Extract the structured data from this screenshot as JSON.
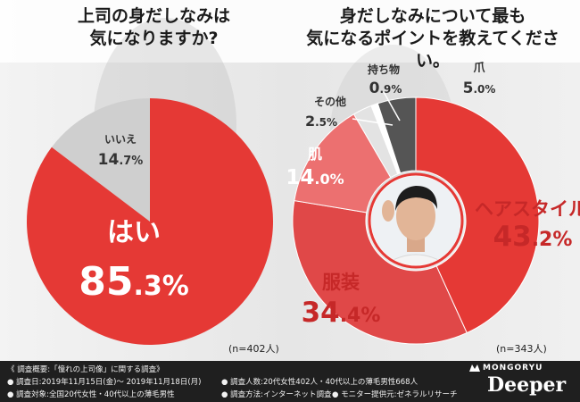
{
  "titles": {
    "left_line1": "上司の身だしなみは",
    "left_line2": "気になりますか?",
    "right_line1": "身だしなみについて最も",
    "right_line2": "気になるポイントを教えてください。"
  },
  "colors": {
    "red": "#e53935",
    "dark_red": "#c62828",
    "mid_red": "#e04848",
    "light_red": "#ec7070",
    "gray": "#cfcfcf",
    "light_gray": "#e3e3e3",
    "dark_gray": "#555555",
    "white": "#ffffff",
    "dark_text": "#333333"
  },
  "chart_data": [
    {
      "type": "pie",
      "title": "上司の身だしなみは気になりますか?",
      "slices": [
        {
          "label": "はい",
          "value": 85.3,
          "value_int": "85",
          "value_dec": ".3%"
        },
        {
          "label": "いいえ",
          "value": 14.7,
          "value_int": "14",
          "value_dec": ".7%"
        }
      ],
      "sample_size": "(n=402人)"
    },
    {
      "type": "pie",
      "title": "身だしなみについて最も気になるポイントを教えてください。",
      "slices": [
        {
          "label": "ヘアスタイル",
          "value": 43.2,
          "value_int": "43",
          "value_dec": ".2%"
        },
        {
          "label": "服装",
          "value": 34.4,
          "value_int": "34",
          "value_dec": ".4%"
        },
        {
          "label": "肌",
          "value": 14.0,
          "value_int": "14",
          "value_dec": ".0%"
        },
        {
          "label": "その他",
          "value": 2.5,
          "value_int": "2",
          "value_dec": ".5%"
        },
        {
          "label": "持ち物",
          "value": 0.9,
          "value_int": "0",
          "value_dec": ".9%"
        },
        {
          "label": "爪",
          "value": 5.0,
          "value_int": "5",
          "value_dec": ".0%"
        }
      ],
      "sample_size": "(n=343人)"
    }
  ],
  "footer": {
    "line1": "《 調査概要:「憧れの上司像」に関する調査》",
    "line2a": "● 調査日:2019年11月15日(金)〜 2019年11月18日(月)",
    "line2b": "● 調査人数:20代女性402人・40代以上の薄毛男性668人",
    "line3a": "● 調査対象:全国20代女性・40代以上の薄毛男性",
    "line3b": "● 調査方法:インターネット調査",
    "line3c": "● モニター提供元:ゼネラルリサーチ"
  },
  "brand": {
    "small": "MONGORYU",
    "big": "Deeper"
  }
}
